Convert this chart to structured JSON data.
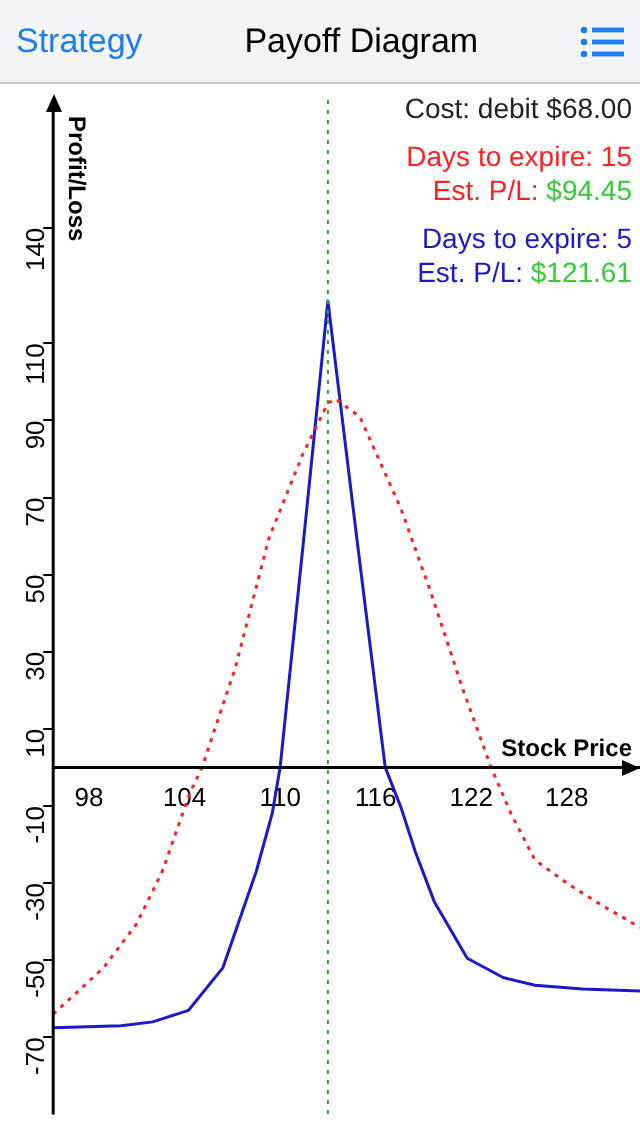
{
  "chart_data": {
    "type": "line",
    "title": "Payoff Diagram",
    "xlabel": "Stock Price",
    "ylabel": "Profit/Loss",
    "xlim": [
      95.75,
      132.6
    ],
    "xticks": [
      98,
      104,
      110,
      116,
      122,
      128
    ],
    "ylim": [
      -90,
      170
    ],
    "yticks": [
      -70,
      -50,
      -30,
      -10,
      10,
      30,
      50,
      70,
      90,
      110,
      140
    ],
    "grid": false,
    "legend": "top right",
    "marker": "none",
    "annotations": [
      "Strategy",
      "Cost: debit $68.00",
      "Est. P/L: $94.45",
      "Est. P/L: $121.61"
    ],
    "ref_lines": [
      {
        "axis": "x",
        "value": 113,
        "color": "#22aa22",
        "line_style": "dotted"
      }
    ],
    "series": [
      {
        "name": "Days to expire: 15",
        "color": "#ff2020",
        "line_style": "dotted",
        "x": [
          95.75,
          98.9,
          101,
          102.6,
          104.3,
          105.1,
          107.2,
          109.3,
          111.4,
          113,
          113.5,
          115,
          117.6,
          119.5,
          121.5,
          123.25,
          124.5,
          126,
          128,
          130.1,
          132.6
        ],
        "values": [
          -64,
          -52,
          -40.5,
          -27,
          -7,
          0,
          26,
          59.5,
          81,
          94.5,
          95.5,
          91,
          67,
          45,
          20,
          0,
          -12,
          -24,
          -30,
          -35.5,
          -41.5
        ]
      },
      {
        "name": "Days to expire: 5",
        "color": "#1a1acc",
        "line_style": "solid",
        "x": [
          95.75,
          100,
          102,
          104.25,
          106.4,
          108.5,
          109.5,
          110,
          111.5,
          113,
          114.8,
          116.6,
          117.6,
          118.5,
          119.7,
          121.75,
          124,
          126,
          129,
          132.6
        ],
        "values": [
          -67.5,
          -67,
          -66,
          -63,
          -52,
          -27,
          -12,
          0,
          60,
          121,
          60,
          0,
          -10.5,
          -22,
          -35,
          -49.5,
          -54.5,
          -56.5,
          -57.5,
          -58
        ]
      }
    ]
  }
}
